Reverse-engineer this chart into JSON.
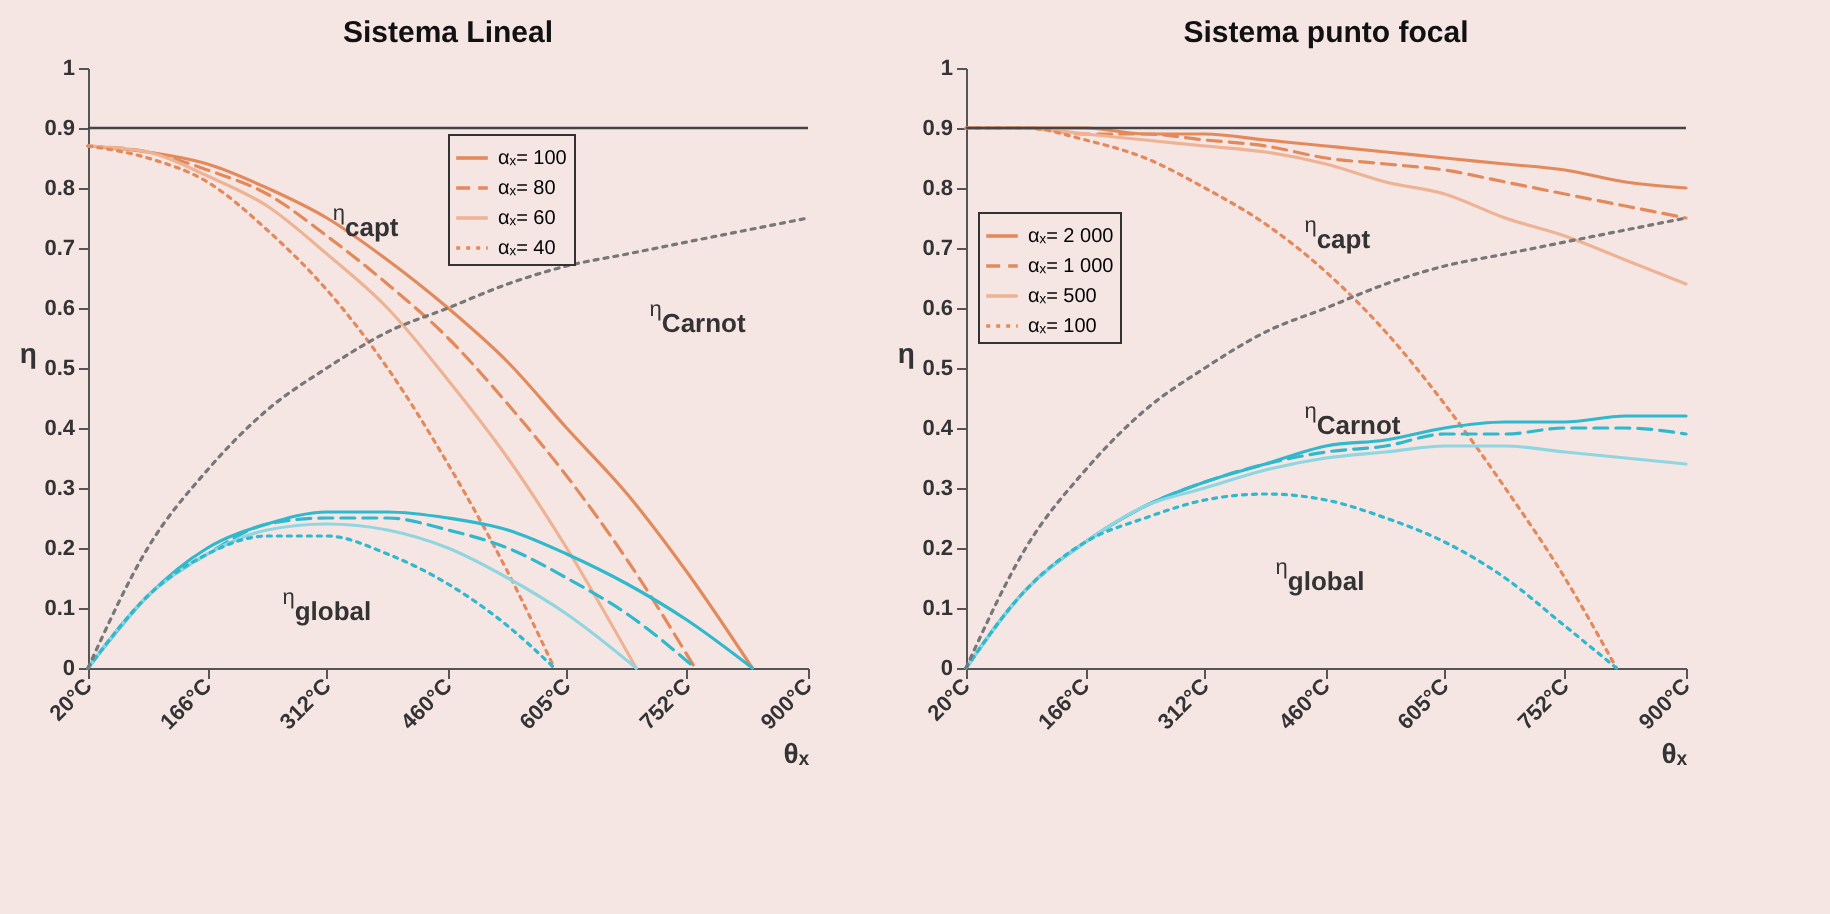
{
  "chart_data": [
    {
      "type": "line",
      "title": "Sistema Lineal",
      "xlabel": "θₓ",
      "ylabel": "η",
      "xlim": [
        20,
        900
      ],
      "xticks": [
        {
          "value": 20,
          "label": "20°C"
        },
        {
          "value": 166,
          "label": "166°C"
        },
        {
          "value": 312,
          "label": "312°C"
        },
        {
          "value": 460,
          "label": "460°C"
        },
        {
          "value": 605,
          "label": "605°C"
        },
        {
          "value": 752,
          "label": "752°C"
        },
        {
          "value": 900,
          "label": "900°C"
        }
      ],
      "ylim": [
        0,
        1
      ],
      "yticks": [
        0,
        0.1,
        0.2,
        0.3,
        0.4,
        0.5,
        0.6,
        0.7,
        0.8,
        0.9,
        1
      ],
      "legend": "top right",
      "ref_lines": [
        {
          "axis": "y",
          "value": 0.9,
          "color": "#444444"
        }
      ],
      "annotations": [
        "η$_{capt}$",
        "η$_{Carnot}$",
        "η$_{global}$"
      ],
      "series": [
        {
          "name": "αₓ= 100",
          "color": "#e38a5c",
          "line_style": "solid",
          "x": [
            20,
            93,
            166,
            239,
            312,
            386,
            460,
            533,
            605,
            679,
            752,
            832
          ],
          "values": [
            0.87,
            0.86,
            0.84,
            0.8,
            0.75,
            0.68,
            0.6,
            0.51,
            0.4,
            0.29,
            0.16,
            0
          ]
        },
        {
          "name": "αₓ= 80",
          "color": "#e38a5c",
          "line_style": "dashed",
          "x": [
            20,
            93,
            166,
            239,
            312,
            386,
            460,
            533,
            605,
            679,
            762
          ],
          "values": [
            0.87,
            0.86,
            0.83,
            0.79,
            0.72,
            0.64,
            0.55,
            0.44,
            0.32,
            0.18,
            0
          ]
        },
        {
          "name": "αₓ= 60",
          "color": "#eeb394",
          "line_style": "solid",
          "x": [
            20,
            93,
            166,
            239,
            312,
            386,
            460,
            533,
            605,
            690
          ],
          "values": [
            0.87,
            0.86,
            0.82,
            0.77,
            0.69,
            0.6,
            0.48,
            0.35,
            0.2,
            0
          ]
        },
        {
          "name": "αₓ= 40",
          "color": "#e38a5c",
          "line_style": "dotted",
          "x": [
            20,
            93,
            166,
            239,
            312,
            386,
            460,
            533,
            590
          ],
          "values": [
            0.87,
            0.85,
            0.81,
            0.73,
            0.63,
            0.5,
            0.34,
            0.16,
            0
          ]
        },
        {
          "color": "#30b8cc",
          "line_style": "solid",
          "x": [
            20,
            93,
            166,
            239,
            312,
            386,
            460,
            533,
            605,
            679,
            752,
            832
          ],
          "values": [
            0,
            0.12,
            0.2,
            0.24,
            0.26,
            0.26,
            0.25,
            0.23,
            0.19,
            0.14,
            0.08,
            0
          ]
        },
        {
          "color": "#30b8cc",
          "line_style": "dashed",
          "x": [
            20,
            93,
            166,
            239,
            312,
            386,
            460,
            533,
            605,
            679,
            762
          ],
          "values": [
            0,
            0.12,
            0.19,
            0.24,
            0.25,
            0.25,
            0.23,
            0.2,
            0.15,
            0.09,
            0
          ]
        },
        {
          "color": "#8fd6e0",
          "line_style": "solid",
          "x": [
            20,
            93,
            166,
            239,
            312,
            386,
            460,
            533,
            605,
            690
          ],
          "values": [
            0,
            0.12,
            0.19,
            0.23,
            0.24,
            0.23,
            0.2,
            0.15,
            0.09,
            0
          ]
        },
        {
          "color": "#30b8cc",
          "line_style": "dotted",
          "x": [
            20,
            93,
            166,
            239,
            312,
            386,
            460,
            533,
            590
          ],
          "values": [
            0,
            0.12,
            0.19,
            0.22,
            0.22,
            0.19,
            0.14,
            0.07,
            0
          ]
        },
        {
          "color": "#777777",
          "line_style": "dotted",
          "x": [
            20,
            93,
            166,
            239,
            312,
            386,
            460,
            533,
            605,
            679,
            752,
            826,
            900
          ],
          "values": [
            0,
            0.2,
            0.33,
            0.43,
            0.5,
            0.56,
            0.6,
            0.64,
            0.67,
            0.69,
            0.71,
            0.73,
            0.75
          ]
        }
      ]
    },
    {
      "type": "line",
      "title": "Sistema punto focal",
      "xlabel": "θₓ",
      "ylabel": "η",
      "xlim": [
        20,
        900
      ],
      "xticks": [
        {
          "value": 20,
          "label": "20°C"
        },
        {
          "value": 166,
          "label": "166°C"
        },
        {
          "value": 312,
          "label": "312°C"
        },
        {
          "value": 460,
          "label": "460°C"
        },
        {
          "value": 605,
          "label": "605°C"
        },
        {
          "value": 752,
          "label": "752°C"
        },
        {
          "value": 900,
          "label": "900°C"
        }
      ],
      "ylim": [
        0,
        1
      ],
      "yticks": [
        0,
        0.1,
        0.2,
        0.3,
        0.4,
        0.5,
        0.6,
        0.7,
        0.8,
        0.9,
        1
      ],
      "legend": "left",
      "ref_lines": [
        {
          "axis": "y",
          "value": 0.9,
          "color": "#444444"
        }
      ],
      "annotations": [
        "η$_{capt}$",
        "η$_{Carnot}$",
        "η$_{global}$"
      ],
      "series": [
        {
          "name": "αₓ= 2 000",
          "color": "#e38a5c",
          "line_style": "solid",
          "x": [
            20,
            93,
            166,
            239,
            312,
            386,
            460,
            533,
            605,
            679,
            752,
            826,
            900
          ],
          "values": [
            0.9,
            0.9,
            0.9,
            0.89,
            0.89,
            0.88,
            0.87,
            0.86,
            0.85,
            0.84,
            0.83,
            0.81,
            0.8
          ]
        },
        {
          "name": "αₓ= 1 000",
          "color": "#e38a5c",
          "line_style": "dashed",
          "x": [
            20,
            93,
            166,
            239,
            312,
            386,
            460,
            533,
            605,
            679,
            752,
            826,
            900
          ],
          "values": [
            0.9,
            0.9,
            0.89,
            0.89,
            0.88,
            0.87,
            0.85,
            0.84,
            0.83,
            0.81,
            0.79,
            0.77,
            0.75
          ]
        },
        {
          "name": "αₓ= 500",
          "color": "#eeb394",
          "line_style": "solid",
          "x": [
            20,
            93,
            166,
            239,
            312,
            386,
            460,
            533,
            605,
            679,
            752,
            826,
            900
          ],
          "values": [
            0.9,
            0.9,
            0.89,
            0.88,
            0.87,
            0.86,
            0.84,
            0.81,
            0.79,
            0.75,
            0.72,
            0.68,
            0.64
          ]
        },
        {
          "name": "αₓ= 100",
          "color": "#e38a5c",
          "line_style": "dotted",
          "x": [
            20,
            93,
            166,
            239,
            312,
            386,
            460,
            533,
            605,
            679,
            752,
            815
          ],
          "values": [
            0.9,
            0.9,
            0.88,
            0.85,
            0.8,
            0.74,
            0.66,
            0.56,
            0.44,
            0.3,
            0.15,
            0
          ]
        },
        {
          "color": "#30b8cc",
          "line_style": "solid",
          "x": [
            20,
            93,
            166,
            239,
            312,
            386,
            460,
            533,
            605,
            679,
            752,
            826,
            900
          ],
          "values": [
            0,
            0.13,
            0.21,
            0.27,
            0.31,
            0.34,
            0.37,
            0.38,
            0.4,
            0.41,
            0.41,
            0.42,
            0.42
          ]
        },
        {
          "color": "#30b8cc",
          "line_style": "dashed",
          "x": [
            20,
            93,
            166,
            239,
            312,
            386,
            460,
            533,
            605,
            679,
            752,
            826,
            900
          ],
          "values": [
            0,
            0.13,
            0.21,
            0.27,
            0.31,
            0.34,
            0.36,
            0.37,
            0.39,
            0.39,
            0.4,
            0.4,
            0.39
          ]
        },
        {
          "color": "#8fd6e0",
          "line_style": "solid",
          "x": [
            20,
            93,
            166,
            239,
            312,
            386,
            460,
            533,
            605,
            679,
            752,
            826,
            900
          ],
          "values": [
            0,
            0.13,
            0.21,
            0.27,
            0.3,
            0.33,
            0.35,
            0.36,
            0.37,
            0.37,
            0.36,
            0.35,
            0.34
          ]
        },
        {
          "color": "#30b8cc",
          "line_style": "dotted",
          "x": [
            20,
            93,
            166,
            239,
            312,
            386,
            460,
            533,
            605,
            679,
            752,
            815
          ],
          "values": [
            0,
            0.13,
            0.21,
            0.25,
            0.28,
            0.29,
            0.28,
            0.25,
            0.21,
            0.15,
            0.07,
            0
          ]
        },
        {
          "color": "#777777",
          "line_style": "dotted",
          "x": [
            20,
            93,
            166,
            239,
            312,
            386,
            460,
            533,
            605,
            679,
            752,
            826,
            900
          ],
          "values": [
            0,
            0.2,
            0.33,
            0.43,
            0.5,
            0.56,
            0.6,
            0.64,
            0.67,
            0.69,
            0.71,
            0.73,
            0.75
          ]
        }
      ]
    }
  ]
}
